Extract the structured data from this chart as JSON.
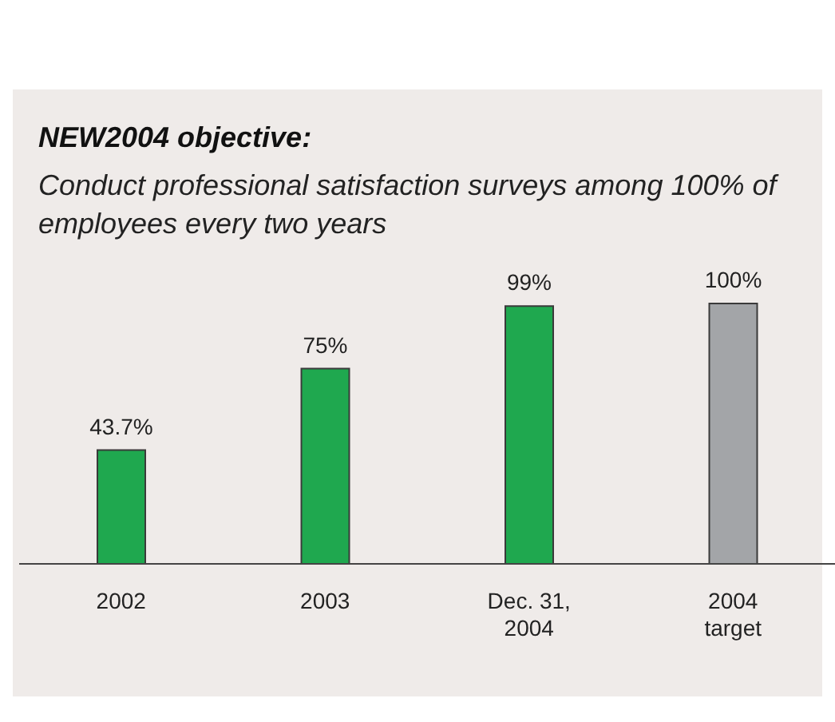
{
  "chart_data": {
    "type": "bar",
    "title": "NEW2004 objective:",
    "subtitle": "Conduct professional satisfaction surveys among 100% of employees every two years",
    "categories": [
      "2002",
      "2003",
      "Dec. 31,\n2004",
      "2004\ntarget"
    ],
    "values": [
      43.7,
      75,
      99,
      100
    ],
    "colors": [
      "#1fa84f",
      "#1fa84f",
      "#1fa84f",
      "#a3a5a8"
    ],
    "value_labels": [
      "43.7%",
      "75%",
      "99%",
      "100%"
    ]
  }
}
